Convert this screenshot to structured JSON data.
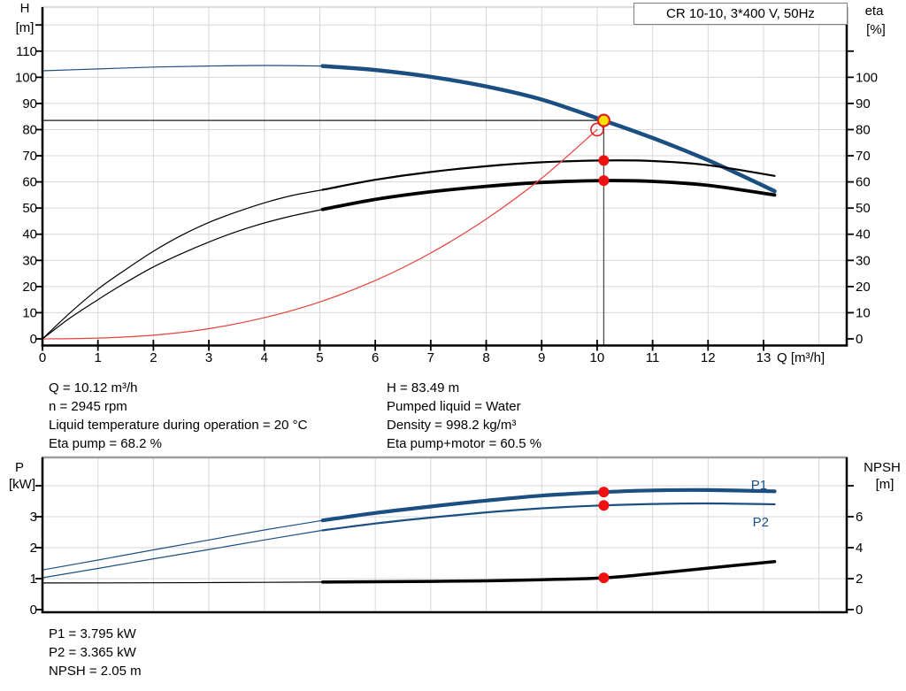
{
  "title_box": "CR 10-10, 3*400 V, 50Hz",
  "colors": {
    "curve_blue": "#1b4f82",
    "curve_black": "#000000",
    "curve_red": "#e8413c",
    "dot_red": "#ee1111",
    "dot_yellow": "#ffe100",
    "marker_ring_red": "#e02020",
    "grid": "#d7d7d7",
    "frame": "#000000",
    "frame_top_light": "#c6c6c6",
    "frame_top_gray": "#9e9e9e",
    "text": "#000000"
  },
  "info_top": {
    "left": [
      "Q = 10.12 m³/h",
      "n = 2945 rpm",
      "Liquid temperature during operation = 20 °C",
      "Eta pump = 68.2 %"
    ],
    "right": [
      "H = 83.49 m",
      "Pumped liquid = Water",
      "Density = 998.2 kg/m³",
      "Eta pump+motor = 60.5 %"
    ]
  },
  "info_bottom": [
    "P1 = 3.795 kW",
    "P2 = 3.365 kW",
    "NPSH = 2.05 m"
  ],
  "chart_data": [
    {
      "id": "top",
      "type": "line",
      "title": "CR 10-10, 3*400 V, 50Hz",
      "x_axis": {
        "label": "Q [m³/h]",
        "min": 0,
        "max": 14.5,
        "tick_labels": [
          "0",
          "1",
          "2",
          "3",
          "4",
          "5",
          "6",
          "7",
          "8",
          "9",
          "10",
          "11",
          "12",
          "13"
        ]
      },
      "y_left": {
        "label_lines": [
          "H",
          "[m]"
        ],
        "unit": "m",
        "tick_step": 10,
        "tick_max": 120,
        "label_max": 110
      },
      "y_right": {
        "label_lines": [
          "eta",
          "[%]"
        ],
        "unit": "%",
        "tick_step": 10,
        "tick_max": 110,
        "label_max": 100
      },
      "duty_point": {
        "q": 10.12,
        "h": 83.49
      },
      "requested_duty_point": {
        "q": 10,
        "h": 80
      },
      "series": [
        {
          "name": "head-curve",
          "label": "H",
          "color": "blue",
          "axis": "left",
          "thick_width": 4.5,
          "out_of_range": [
            [
              0,
              102.5
            ],
            [
              1,
              103.2
            ],
            [
              2,
              103.9
            ],
            [
              3,
              104.3
            ],
            [
              4,
              104.5
            ],
            [
              5.05,
              104.3
            ]
          ],
          "in_range": [
            [
              5.05,
              104.3
            ],
            [
              6,
              102.8
            ],
            [
              7,
              100.2
            ],
            [
              8,
              96.5
            ],
            [
              9,
              91.5
            ],
            [
              10.12,
              83.49
            ],
            [
              11,
              76.8
            ],
            [
              12,
              68.3
            ],
            [
              13.2,
              56.5
            ]
          ]
        },
        {
          "name": "eta-pump-curve",
          "label": "Eta pump",
          "color": "black",
          "axis": "right",
          "thick_width": 2.2,
          "out_of_range": [
            [
              0,
              0
            ],
            [
              0.5,
              10
            ],
            [
              1,
              19
            ],
            [
              1.5,
              26.5
            ],
            [
              2,
              33.5
            ],
            [
              2.5,
              39.5
            ],
            [
              3,
              44.5
            ],
            [
              3.5,
              48.5
            ],
            [
              4,
              52
            ],
            [
              4.5,
              54.8
            ],
            [
              5.05,
              57
            ]
          ],
          "in_range": [
            [
              5.05,
              57
            ],
            [
              6,
              60.8
            ],
            [
              7,
              63.8
            ],
            [
              8,
              66
            ],
            [
              9,
              67.5
            ],
            [
              10.12,
              68.2
            ],
            [
              11,
              68
            ],
            [
              12,
              66.4
            ],
            [
              13.2,
              62.3
            ]
          ]
        },
        {
          "name": "eta-pump-motor-curve",
          "label": "Eta pump+motor",
          "color": "black",
          "axis": "right",
          "thick_width": 3.8,
          "out_of_range": [
            [
              0,
              0
            ],
            [
              0.5,
              8
            ],
            [
              1,
              15
            ],
            [
              1.5,
              21.5
            ],
            [
              2,
              27.5
            ],
            [
              2.5,
              32.5
            ],
            [
              3,
              37
            ],
            [
              3.5,
              41
            ],
            [
              4,
              44.3
            ],
            [
              4.5,
              47
            ],
            [
              5.05,
              49.5
            ]
          ],
          "in_range": [
            [
              5.05,
              49.5
            ],
            [
              6,
              53.3
            ],
            [
              7,
              56.2
            ],
            [
              8,
              58.3
            ],
            [
              9,
              59.8
            ],
            [
              10.12,
              60.5
            ],
            [
              11,
              60.2
            ],
            [
              12,
              58.7
            ],
            [
              13.2,
              55
            ]
          ]
        },
        {
          "name": "system-curve",
          "label": "System curve",
          "color": "red",
          "axis": "left",
          "thick_width": 1.2,
          "out_of_range": [
            [
              0,
              0
            ],
            [
              1,
              0.3
            ],
            [
              2,
              1.4
            ],
            [
              3,
              3.9
            ],
            [
              4,
              8.1
            ],
            [
              5,
              14.1
            ],
            [
              6,
              22.3
            ],
            [
              7,
              32.8
            ],
            [
              8,
              45.8
            ],
            [
              9,
              61.4
            ],
            [
              10,
              80
            ]
          ],
          "in_range": []
        }
      ],
      "markers": [
        {
          "type": "open-circle",
          "color": "red",
          "axis": "left",
          "q": 10,
          "v": 80,
          "r": 7
        },
        {
          "type": "dot",
          "color": "yellow",
          "ring": "red",
          "axis": "left",
          "q": 10.12,
          "v": 83.49,
          "r": 6.5
        },
        {
          "type": "dot",
          "color": "red",
          "axis": "right",
          "q": 10.12,
          "v": 68.2,
          "r": 6
        },
        {
          "type": "dot",
          "color": "red",
          "axis": "right",
          "q": 10.12,
          "v": 60.5,
          "r": 6
        }
      ]
    },
    {
      "id": "bottom",
      "type": "line",
      "x_axis": {
        "label": "",
        "min": 0,
        "max": 14.5,
        "tick_labels": []
      },
      "y_left": {
        "label_lines": [
          "P",
          "[kW]"
        ],
        "unit": "kW",
        "tick_step": 1,
        "tick_max": 4,
        "label_max": 3
      },
      "y_right": {
        "label_lines": [
          "NPSH",
          "[m]"
        ],
        "unit": "m",
        "tick_step": 2,
        "tick_max": 8,
        "label_max": 6
      },
      "series": [
        {
          "name": "p1-curve",
          "label": "P1",
          "color": "blue",
          "axis": "left",
          "thick_width": 4.2,
          "out_of_range": [
            [
              0,
              1.28
            ],
            [
              1,
              1.6
            ],
            [
              2,
              1.93
            ],
            [
              3,
              2.25
            ],
            [
              4,
              2.57
            ],
            [
              5.05,
              2.88
            ]
          ],
          "in_range": [
            [
              5.05,
              2.88
            ],
            [
              6,
              3.12
            ],
            [
              7,
              3.33
            ],
            [
              8,
              3.52
            ],
            [
              9,
              3.68
            ],
            [
              10.12,
              3.795
            ],
            [
              11,
              3.85
            ],
            [
              12,
              3.86
            ],
            [
              13.2,
              3.82
            ]
          ]
        },
        {
          "name": "p2-curve",
          "label": "P2",
          "color": "blue",
          "axis": "left",
          "thick_width": 2.2,
          "out_of_range": [
            [
              0,
              1.03
            ],
            [
              1,
              1.33
            ],
            [
              2,
              1.64
            ],
            [
              3,
              1.94
            ],
            [
              4,
              2.25
            ],
            [
              5.05,
              2.56
            ]
          ],
          "in_range": [
            [
              5.05,
              2.56
            ],
            [
              6,
              2.78
            ],
            [
              7,
              2.97
            ],
            [
              8,
              3.14
            ],
            [
              9,
              3.27
            ],
            [
              10.12,
              3.365
            ],
            [
              11,
              3.41
            ],
            [
              12,
              3.43
            ],
            [
              13.2,
              3.4
            ]
          ]
        },
        {
          "name": "npsh-curve",
          "label": "NPSH",
          "color": "black",
          "axis": "right",
          "thick_width": 3.5,
          "out_of_range": [
            [
              0,
              1.72
            ],
            [
              2,
              1.73
            ],
            [
              4,
              1.76
            ],
            [
              5.05,
              1.78
            ]
          ],
          "in_range": [
            [
              5.05,
              1.78
            ],
            [
              6,
              1.8
            ],
            [
              7,
              1.82
            ],
            [
              8,
              1.86
            ],
            [
              9,
              1.93
            ],
            [
              10.12,
              2.05
            ],
            [
              11,
              2.32
            ],
            [
              12,
              2.68
            ],
            [
              13.2,
              3.1
            ]
          ]
        }
      ],
      "series_labels": [
        {
          "text": "P1",
          "q": 12.92,
          "v": 3.89,
          "axis": "left",
          "color": "blue"
        },
        {
          "text": "P2",
          "q": 12.95,
          "v": 2.69,
          "axis": "left",
          "color": "blue"
        }
      ],
      "markers": [
        {
          "type": "dot",
          "color": "red",
          "axis": "left",
          "q": 10.12,
          "v": 3.795,
          "r": 6
        },
        {
          "type": "dot",
          "color": "red",
          "axis": "left",
          "q": 10.12,
          "v": 3.365,
          "r": 6
        },
        {
          "type": "dot",
          "color": "red",
          "axis": "right",
          "q": 10.12,
          "v": 2.05,
          "r": 6
        }
      ]
    }
  ]
}
